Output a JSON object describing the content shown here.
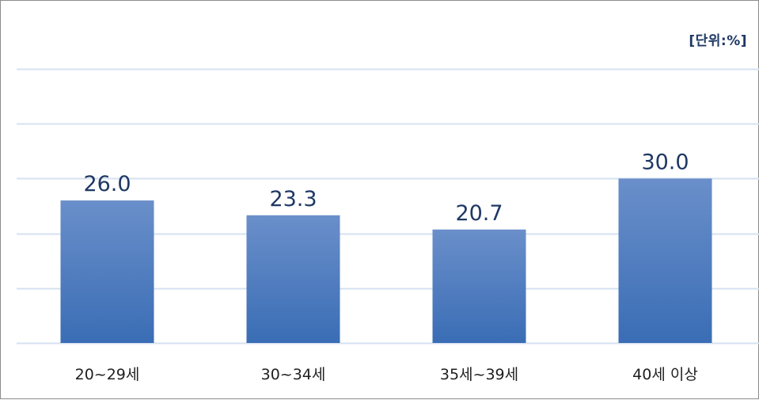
{
  "chart_data": {
    "type": "bar",
    "unit_label": "[단위:%]",
    "categories": [
      "20~29세",
      "30~34세",
      "35세~39세",
      "40세 이상"
    ],
    "values": [
      26.0,
      23.3,
      20.7,
      30.0
    ],
    "value_labels": [
      "26.0",
      "23.3",
      "20.7",
      "30.0"
    ],
    "ylim": [
      0,
      50
    ],
    "grid": true,
    "legend": "none",
    "colors": {
      "bar_top": "#6a8fca",
      "bar_bottom": "#3a6db5",
      "grid": "#d6e2f0",
      "value_text": "#1f3864",
      "tick_text": "#1f1f1f"
    }
  }
}
